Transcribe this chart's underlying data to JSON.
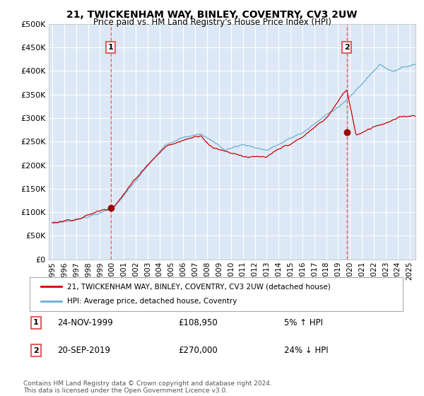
{
  "title": "21, TWICKENHAM WAY, BINLEY, COVENTRY, CV3 2UW",
  "subtitle": "Price paid vs. HM Land Registry's House Price Index (HPI)",
  "legend_line1": "21, TWICKENHAM WAY, BINLEY, COVENTRY, CV3 2UW (detached house)",
  "legend_line2": "HPI: Average price, detached house, Coventry",
  "annotation1_label": "1",
  "annotation1_date": "24-NOV-1999",
  "annotation1_price": "£108,950",
  "annotation1_hpi": "5% ↑ HPI",
  "annotation2_label": "2",
  "annotation2_date": "20-SEP-2019",
  "annotation2_price": "£270,000",
  "annotation2_hpi": "24% ↓ HPI",
  "footer": "Contains HM Land Registry data © Crown copyright and database right 2024.\nThis data is licensed under the Open Government Licence v3.0.",
  "hpi_color": "#6baed6",
  "price_color": "#cc0000",
  "marker_color": "#990000",
  "vline_color": "#e06060",
  "background_color": "#ffffff",
  "plot_bg_color": "#dce8f5",
  "grid_color": "#ffffff",
  "xmin": 1994.7,
  "xmax": 2025.5,
  "ymin": 0,
  "ymax": 500000,
  "yticks": [
    0,
    50000,
    100000,
    150000,
    200000,
    250000,
    300000,
    350000,
    400000,
    450000,
    500000
  ],
  "sale1_x": 1999.9,
  "sale1_y": 108950,
  "sale2_x": 2019.72,
  "sale2_y": 270000
}
